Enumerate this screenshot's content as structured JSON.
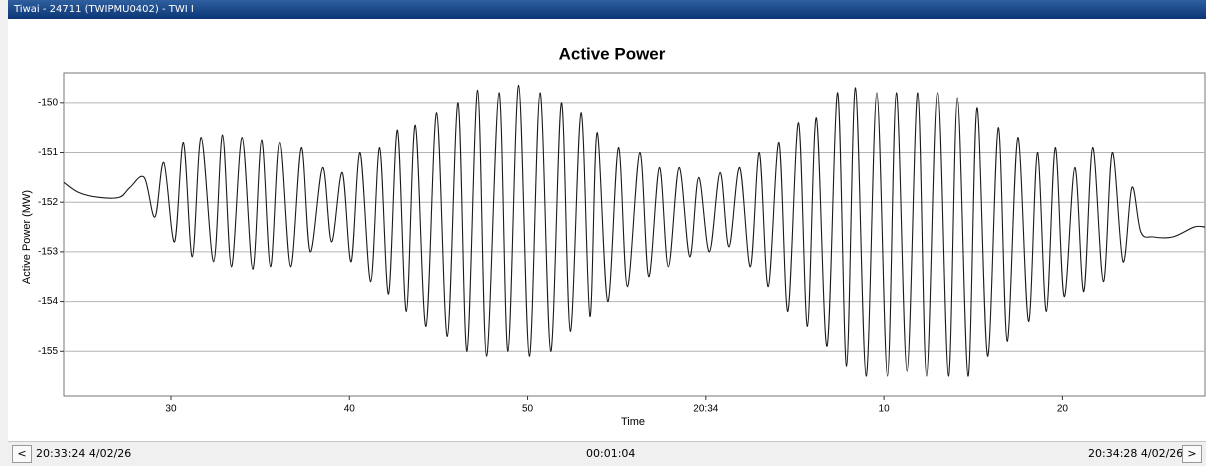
{
  "window": {
    "title": "Tiwai - 24711 (TWIPMU0402) - TWI I"
  },
  "chart_data": {
    "type": "line",
    "title": "Active Power",
    "x_label": "Time",
    "y_label": "Active Power (MW)",
    "color": "#1a1a1a",
    "grid": true,
    "xlim": [
      24,
      88
    ],
    "xticks": [
      30,
      40,
      50,
      {
        "value": 60,
        "label": "20:34"
      },
      {
        "value": 70,
        "label": "10"
      },
      {
        "value": 80,
        "label": "20"
      }
    ],
    "ylim": [
      -155.9,
      -149.4
    ],
    "yticks": [
      -150,
      -151,
      -152,
      -153,
      -154,
      -155
    ],
    "x": [
      24.0,
      24.8,
      25.9,
      27.1,
      27.7,
      28.5,
      29.1,
      29.6,
      30.2,
      30.7,
      31.2,
      31.7,
      32.4,
      32.9,
      33.4,
      34.0,
      34.6,
      35.1,
      35.6,
      36.1,
      36.7,
      37.3,
      37.8,
      38.5,
      39.0,
      39.6,
      40.1,
      40.6,
      41.2,
      41.7,
      42.2,
      42.7,
      43.2,
      43.7,
      44.3,
      44.9,
      45.5,
      46.1,
      46.6,
      47.2,
      47.7,
      48.4,
      48.9,
      49.5,
      50.1,
      50.7,
      51.3,
      51.9,
      52.4,
      53.0,
      53.5,
      53.9,
      54.5,
      55.1,
      55.6,
      56.3,
      56.8,
      57.4,
      57.9,
      58.5,
      59.1,
      59.6,
      60.2,
      60.8,
      61.3,
      61.9,
      62.5,
      63.0,
      63.5,
      64.1,
      64.6,
      65.2,
      65.7,
      66.2,
      66.8,
      67.4,
      67.9,
      68.4,
      69.0,
      69.6,
      70.2,
      70.7,
      71.3,
      71.9,
      72.4,
      73.0,
      73.6,
      74.1,
      74.7,
      75.2,
      75.8,
      76.4,
      76.9,
      77.5,
      78.1,
      78.6,
      79.1,
      79.6,
      80.1,
      80.7,
      81.2,
      81.7,
      82.3,
      82.8,
      83.4,
      83.9,
      84.4,
      85.1,
      86.2,
      87.4,
      88.0
    ],
    "values": [
      -151.6,
      -151.8,
      -151.9,
      -151.9,
      -151.7,
      -151.5,
      -152.3,
      -151.2,
      -152.8,
      -150.8,
      -153.1,
      -150.7,
      -153.2,
      -150.65,
      -153.3,
      -150.7,
      -153.35,
      -150.75,
      -153.3,
      -150.8,
      -153.3,
      -150.9,
      -153.0,
      -151.3,
      -152.8,
      -151.4,
      -153.2,
      -151.0,
      -153.6,
      -150.9,
      -153.85,
      -150.55,
      -154.2,
      -150.45,
      -154.5,
      -150.2,
      -154.7,
      -150.0,
      -155.0,
      -149.75,
      -155.1,
      -149.8,
      -155.0,
      -149.65,
      -155.1,
      -149.8,
      -155.0,
      -150.0,
      -154.6,
      -150.2,
      -154.3,
      -150.6,
      -154.0,
      -150.9,
      -153.7,
      -151.0,
      -153.5,
      -151.3,
      -153.3,
      -151.3,
      -153.1,
      -151.5,
      -153.0,
      -151.4,
      -152.9,
      -151.3,
      -153.3,
      -151.0,
      -153.7,
      -150.8,
      -154.2,
      -150.4,
      -154.5,
      -150.3,
      -154.9,
      -149.8,
      -155.3,
      -149.7,
      -155.5,
      -149.8,
      -155.5,
      -149.8,
      -155.4,
      -149.8,
      -155.5,
      -149.8,
      -155.5,
      -149.9,
      -155.5,
      -150.1,
      -155.1,
      -150.5,
      -154.8,
      -150.7,
      -154.4,
      -151.0,
      -154.2,
      -150.9,
      -153.9,
      -151.3,
      -153.8,
      -150.9,
      -153.6,
      -151.0,
      -153.2,
      -151.7,
      -152.6,
      -152.7,
      -152.7,
      -152.5,
      -152.5
    ]
  },
  "footer": {
    "prev_button": "<",
    "start": "20:33:24 4/02/26",
    "duration": "00:01:04",
    "end": "20:34:28 4/02/26",
    "next_button": ">"
  }
}
